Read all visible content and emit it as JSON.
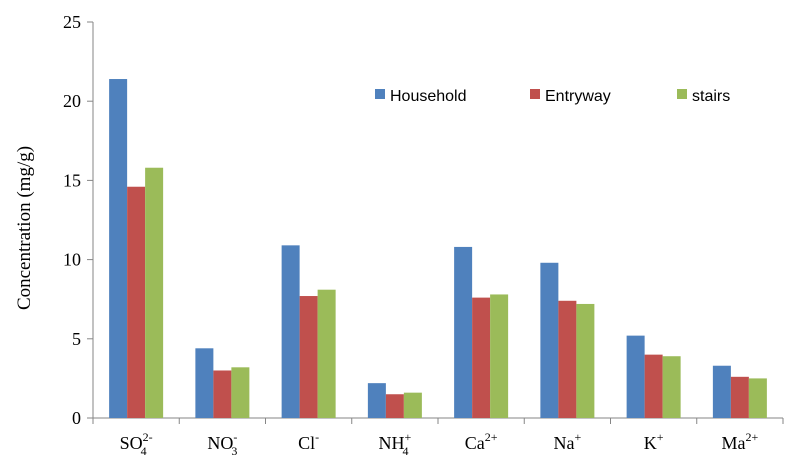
{
  "chart_data": {
    "type": "bar",
    "title": "",
    "xlabel": "",
    "ylabel": "Concentration (mg/g)",
    "ylim": [
      0,
      25
    ],
    "yticks": [
      0,
      5,
      10,
      15,
      20,
      25
    ],
    "grid": false,
    "legend_position": "top-right",
    "categories": [
      {
        "base": "SO",
        "sub": "4",
        "sup": "2-"
      },
      {
        "base": "NO",
        "sub": "3",
        "sup": "-"
      },
      {
        "base": "Cl",
        "sub": "",
        "sup": "-"
      },
      {
        "base": "NH",
        "sub": "4",
        "sup": "+"
      },
      {
        "base": "Ca",
        "sub": "",
        "sup": "2+"
      },
      {
        "base": "Na",
        "sub": "",
        "sup": "+"
      },
      {
        "base": "K",
        "sub": "",
        "sup": "+"
      },
      {
        "base": "Ma",
        "sub": "",
        "sup": "2+"
      }
    ],
    "series": [
      {
        "name": "Household",
        "color": "#4f81bd",
        "values": [
          21.4,
          4.4,
          10.9,
          2.2,
          10.8,
          9.8,
          5.2,
          3.3
        ]
      },
      {
        "name": "Entryway",
        "color": "#c0504d",
        "values": [
          14.6,
          3.0,
          7.7,
          1.5,
          7.6,
          7.4,
          4.0,
          2.6
        ]
      },
      {
        "name": "stairs",
        "color": "#9bbb59",
        "values": [
          15.8,
          3.2,
          8.1,
          1.6,
          7.8,
          7.2,
          3.9,
          2.5
        ]
      }
    ]
  }
}
